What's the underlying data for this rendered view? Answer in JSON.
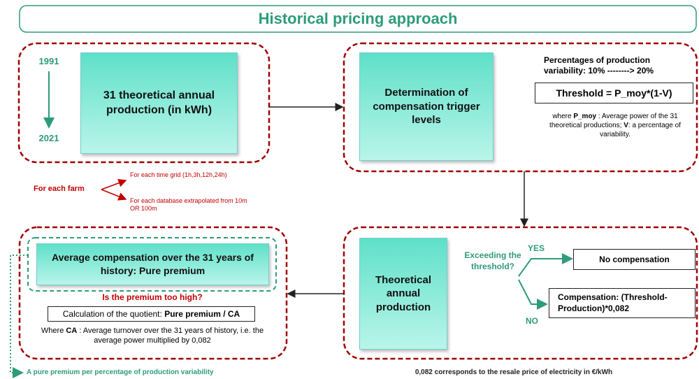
{
  "header": {
    "title": "Historical pricing approach"
  },
  "years": {
    "start": "1991",
    "end": "2021"
  },
  "production_box": {
    "label": "31 theoretical annual production (in kWh)"
  },
  "trigger_box": {
    "label": "Determination of compensation trigger levels"
  },
  "variability": {
    "text": "Percentages of production variability: 10% --------> 20%"
  },
  "threshold": {
    "formula": "Threshold = P_moy*(1-V)",
    "note": [
      "where ",
      "P_moy",
      " : Average power of the 31 theoretical productions; ",
      "V",
      ": a percentage of variability."
    ]
  },
  "farm": {
    "label": "For each farm",
    "branches": [
      "For each time grid (1h,3h,12h,24h)",
      "For each database extrapolated from 10m OR 100m"
    ]
  },
  "theoretical_box": {
    "label": "Theoretical annual production"
  },
  "decision": {
    "question": "Exceeding the threshold?",
    "yes": "YES",
    "no": "NO",
    "yes_result": "No compensation",
    "no_result": "Compensation: (Threshold-Production)*0,082"
  },
  "premium_box": {
    "label": "Average compensation over the 31 years of history: Pure premium"
  },
  "premium_check": {
    "question": "Is the premium too high?",
    "calc": [
      "Calculation of the quotient: ",
      "Pure premium / CA"
    ],
    "note": [
      "Where ",
      "CA",
      " : Average turnover over the 31 years of history, i.e. the average power multiplied by 0,082"
    ]
  },
  "footer": {
    "left": "A pure premium per percentage of production variability",
    "right": "0,082 corresponds to the resale price of electricity in €/kWh"
  }
}
